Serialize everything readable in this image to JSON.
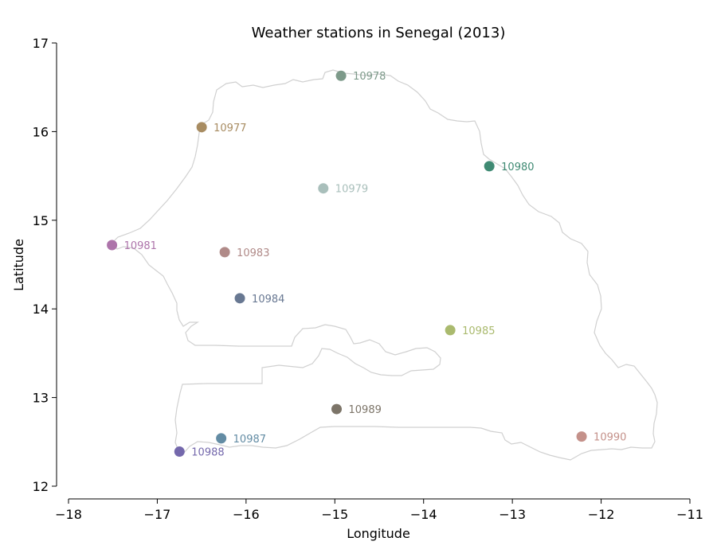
{
  "chart_data": {
    "type": "scatter",
    "title": "Weather stations in Senegal (2013)",
    "xlabel": "Longitude",
    "ylabel": "Latitude",
    "xlim": [
      -18,
      -11
    ],
    "ylim": [
      12,
      17
    ],
    "xticks": [
      "−18",
      "−17",
      "−16",
      "−15",
      "−14",
      "−13",
      "−12",
      "−11"
    ],
    "yticks": [
      "12",
      "13",
      "14",
      "15",
      "16",
      "17"
    ],
    "grid": false,
    "points": [
      {
        "label": "10978",
        "x": -14.93,
        "y": 16.63,
        "color": "#7d9a8a"
      },
      {
        "label": "10977",
        "x": -16.5,
        "y": 16.05,
        "color": "#a88c62"
      },
      {
        "label": "10980",
        "x": -13.26,
        "y": 15.61,
        "color": "#3f8a73"
      },
      {
        "label": "10979",
        "x": -15.13,
        "y": 15.36,
        "color": "#a9bfbb"
      },
      {
        "label": "10981",
        "x": -17.51,
        "y": 14.72,
        "color": "#ad74aa"
      },
      {
        "label": "10983",
        "x": -16.24,
        "y": 14.64,
        "color": "#b08a88"
      },
      {
        "label": "10984",
        "x": -16.07,
        "y": 14.12,
        "color": "#687892"
      },
      {
        "label": "10985",
        "x": -13.7,
        "y": 13.76,
        "color": "#aaba6e"
      },
      {
        "label": "10989",
        "x": -14.98,
        "y": 12.87,
        "color": "#7c7468"
      },
      {
        "label": "10987",
        "x": -16.28,
        "y": 12.54,
        "color": "#638ca4"
      },
      {
        "label": "10990",
        "x": -12.22,
        "y": 12.56,
        "color": "#c4918a"
      },
      {
        "label": "10988",
        "x": -16.75,
        "y": 12.39,
        "color": "#7468ac"
      }
    ]
  }
}
